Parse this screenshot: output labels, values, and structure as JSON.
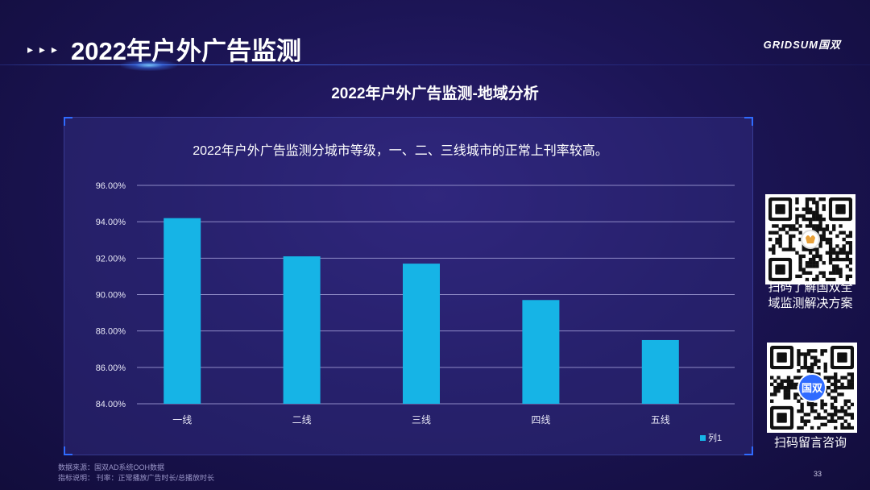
{
  "header": {
    "arrows": "▸ ▸ ▸",
    "title": "2022年户外广告监测",
    "logo": "GRIDSUM国双"
  },
  "section_title": "2022年户外广告监测-地域分析",
  "chart_data": {
    "type": "bar",
    "title": "2022年户外广告监测分城市等级，一、二、三线城市的正常上刊率较高。",
    "categories": [
      "一线",
      "二线",
      "三线",
      "四线",
      "五线"
    ],
    "series": [
      {
        "name": "列1",
        "values": [
          0.942,
          0.921,
          0.917,
          0.897,
          0.875
        ],
        "color": "#16b4e6"
      }
    ],
    "ylim": [
      0.84,
      0.96
    ],
    "yticks": [
      0.84,
      0.86,
      0.88,
      0.9,
      0.92,
      0.94,
      0.96
    ],
    "ytick_labels": [
      "84.00%",
      "86.00%",
      "88.00%",
      "90.00%",
      "92.00%",
      "94.00%",
      "96.00%"
    ],
    "grid": true,
    "legend": "bottom-right",
    "xlabel": "",
    "ylabel": ""
  },
  "qr": {
    "top_caption_1": "扫码了解国双全",
    "top_caption_2": "域监测解决方案",
    "bottom_caption": "扫码留言咨询",
    "badge_text": "国双"
  },
  "footer": {
    "source": "数据来源：国双AD系统OOH数据",
    "definition": "指标说明：  刊率：正常播放广告时长/总播放时长",
    "page_number": "33"
  },
  "colors": {
    "accent": "#2f6bff",
    "bar": "#16b4e6",
    "grid": "#8e8ac6"
  }
}
